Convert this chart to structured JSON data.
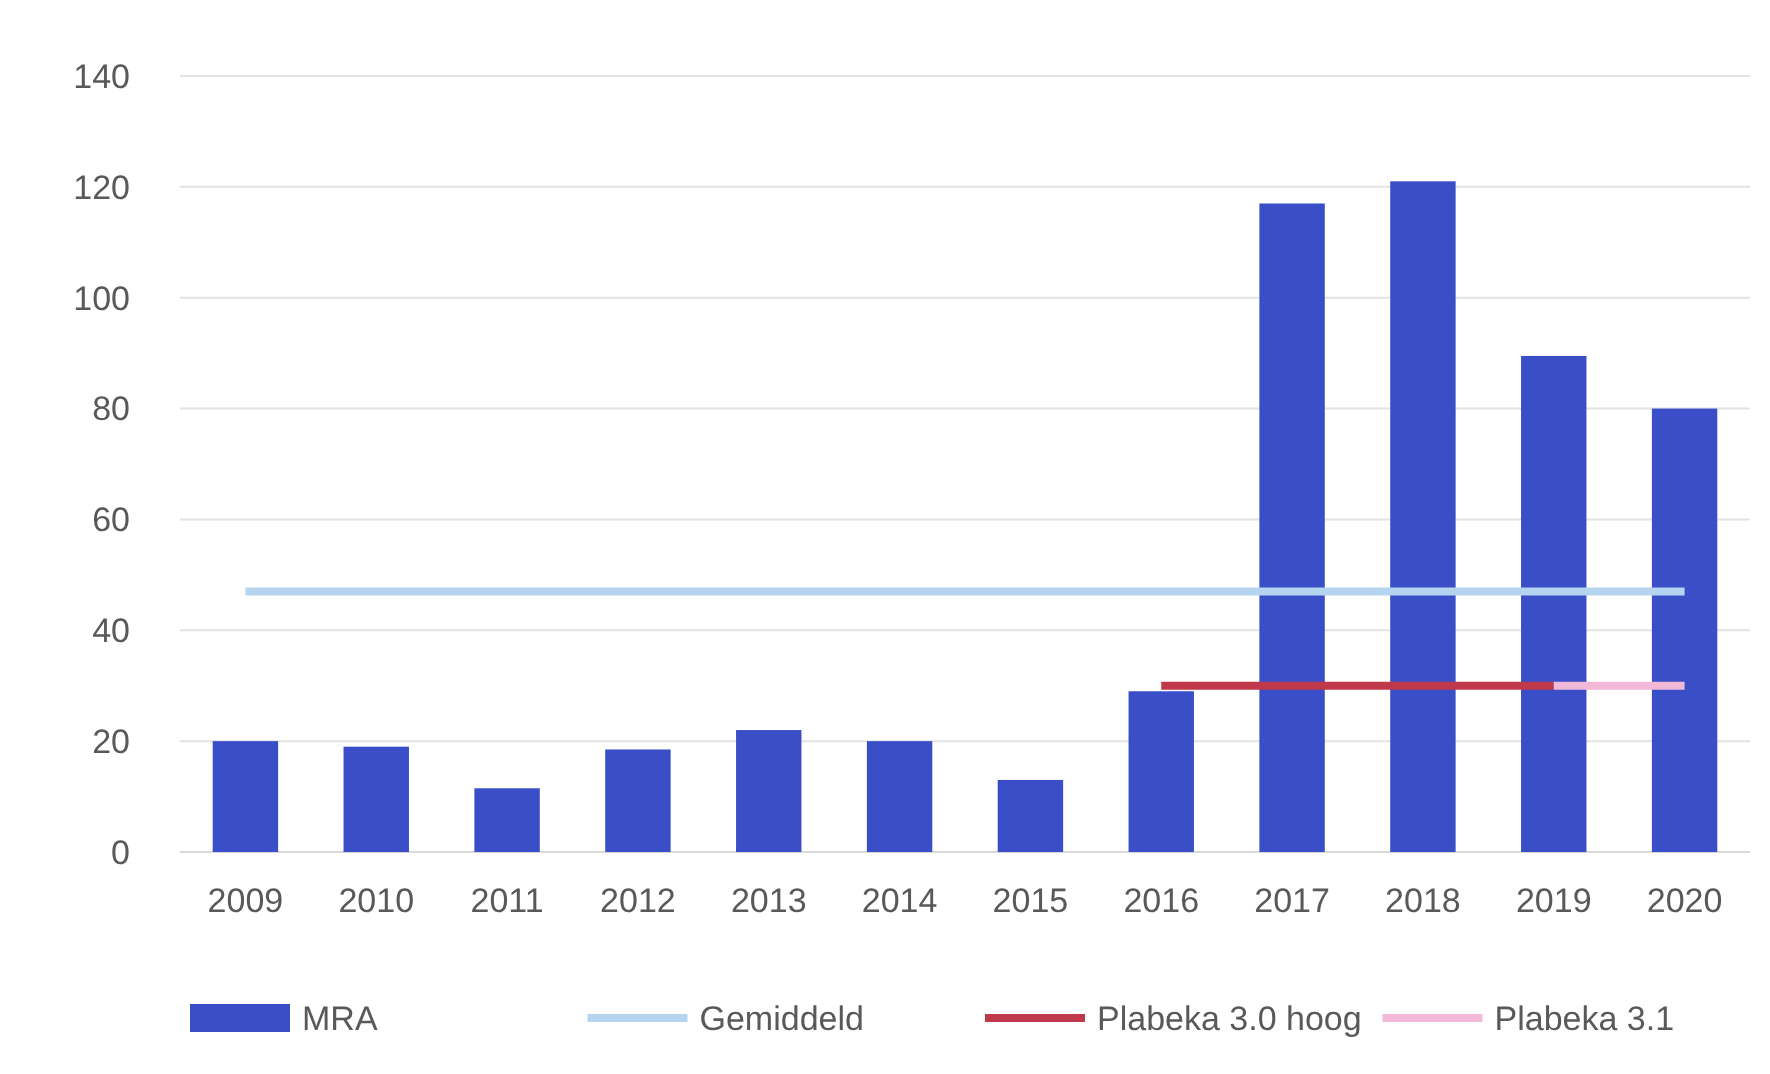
{
  "chart_data": {
    "type": "bar",
    "categories": [
      "2009",
      "2010",
      "2011",
      "2012",
      "2013",
      "2014",
      "2015",
      "2016",
      "2017",
      "2018",
      "2019",
      "2020"
    ],
    "series": [
      {
        "name": "MRA",
        "color": "#3a4fc7",
        "values": [
          20,
          19,
          11.5,
          18.5,
          22,
          20,
          13,
          29,
          117,
          121,
          89.5,
          80
        ]
      },
      {
        "name": "Gemiddeld",
        "type": "line",
        "color": "#b4d4ef",
        "values": [
          47,
          47,
          47,
          47,
          47,
          47,
          47,
          47,
          47,
          47,
          47,
          47
        ]
      },
      {
        "name": "Plabeka 3.0 hoog",
        "type": "line",
        "color": "#c0394b",
        "values": [
          null,
          null,
          null,
          null,
          null,
          null,
          null,
          30,
          30,
          30,
          30,
          null
        ]
      },
      {
        "name": "Plabeka 3.1",
        "type": "line",
        "color": "#f2b8d8",
        "values": [
          null,
          null,
          null,
          null,
          null,
          null,
          null,
          null,
          null,
          null,
          30,
          30
        ]
      }
    ],
    "ylim": [
      0,
      140
    ],
    "yticks": [
      0,
      20,
      40,
      60,
      80,
      100,
      120,
      140
    ],
    "grid": "y",
    "legend": "bottom"
  }
}
